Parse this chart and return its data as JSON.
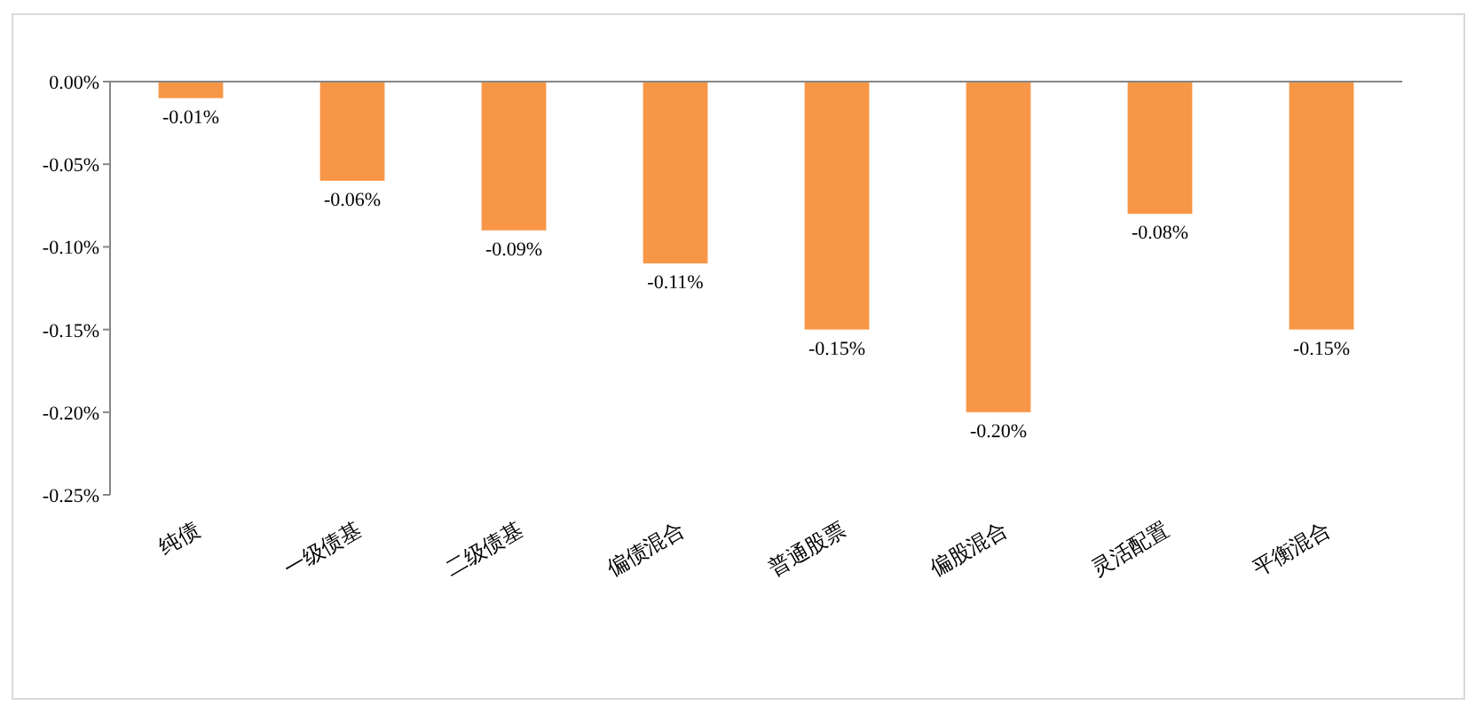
{
  "chart_data": {
    "type": "bar",
    "categories": [
      "纯债",
      "一级债基",
      "二级债基",
      "偏债混合",
      "普通股票",
      "偏股混合",
      "灵活配置",
      "平衡混合"
    ],
    "values": [
      -0.01,
      -0.06,
      -0.09,
      -0.11,
      -0.15,
      -0.2,
      -0.08,
      -0.15
    ],
    "value_labels": [
      "-0.01%",
      "-0.06%",
      "-0.09%",
      "-0.11%",
      "-0.15%",
      "-0.20%",
      "-0.08%",
      "-0.15%"
    ],
    "color": "#f79646",
    "ylim": [
      -0.25,
      0
    ],
    "yticks": [
      {
        "value": 0,
        "label": "0.00%"
      },
      {
        "value": -0.05,
        "label": "-0.05%"
      },
      {
        "value": -0.1,
        "label": "-0.10%"
      },
      {
        "value": -0.15,
        "label": "-0.15%"
      },
      {
        "value": -0.2,
        "label": "-0.20%"
      },
      {
        "value": -0.25,
        "label": "-0.25%"
      }
    ],
    "grid": false
  }
}
